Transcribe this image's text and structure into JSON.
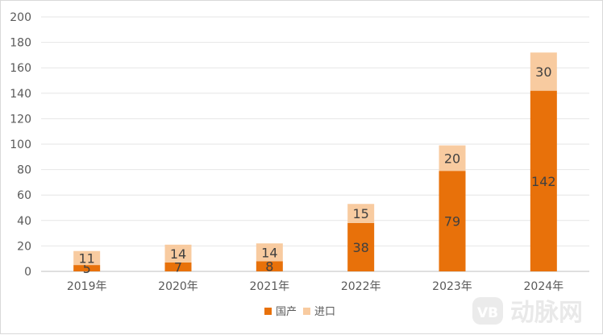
{
  "chart_data": {
    "type": "bar",
    "stacked": true,
    "categories": [
      "2019年",
      "2020年",
      "2021年",
      "2022年",
      "2023年",
      "2024年"
    ],
    "series": [
      {
        "name": "国产",
        "values": [
          5,
          7,
          8,
          38,
          79,
          142
        ],
        "color": "#E8710A"
      },
      {
        "name": "进口",
        "values": [
          11,
          14,
          14,
          15,
          20,
          30
        ],
        "color": "#F8CBA0"
      }
    ],
    "ylim": [
      0,
      200
    ],
    "yticks": [
      0,
      20,
      40,
      60,
      80,
      100,
      120,
      140,
      160,
      180,
      200
    ],
    "grid": true,
    "legend": "bottom-center"
  },
  "watermark": {
    "text": "动脉网",
    "badge": "VB"
  }
}
